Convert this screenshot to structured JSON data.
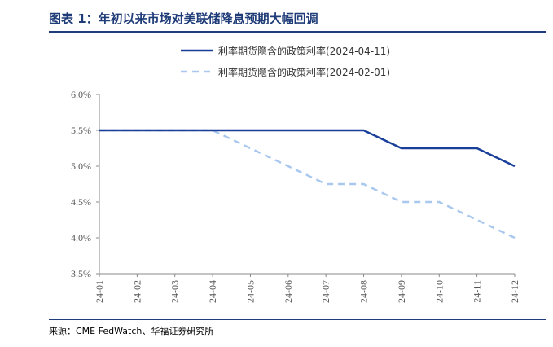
{
  "title": "图表 1：年初以来市场对美联储降息预期大幅回调",
  "source": "来源：CME FedWatch、华福证券研究所",
  "chart_data": {
    "type": "line",
    "categories": [
      "24-01",
      "24-02",
      "24-03",
      "24-04",
      "24-05",
      "24-06",
      "24-07",
      "24-08",
      "24-09",
      "24-10",
      "24-11",
      "24-12"
    ],
    "ylim": [
      3.5,
      6.0
    ],
    "yticks": [
      "3.5%",
      "4.0%",
      "4.5%",
      "5.0%",
      "5.5%",
      "6.0%"
    ],
    "ytick_values": [
      3.5,
      4.0,
      4.5,
      5.0,
      5.5,
      6.0
    ],
    "series": [
      {
        "name": "利率期货隐含的政策利率(2024-04-11)",
        "color": "#1a3f9a",
        "style": "solid",
        "values": [
          5.5,
          5.5,
          5.5,
          5.5,
          5.5,
          5.5,
          5.5,
          5.5,
          5.25,
          5.25,
          5.25,
          5.0
        ]
      },
      {
        "name": "利率期货隐含的政策利率(2024-02-01)",
        "color": "#a9c8f0",
        "style": "dashed",
        "values": [
          5.5,
          5.5,
          5.5,
          5.5,
          5.25,
          5.0,
          4.75,
          4.75,
          4.5,
          4.5,
          4.25,
          4.0
        ]
      }
    ],
    "legend_position": "top-right"
  }
}
